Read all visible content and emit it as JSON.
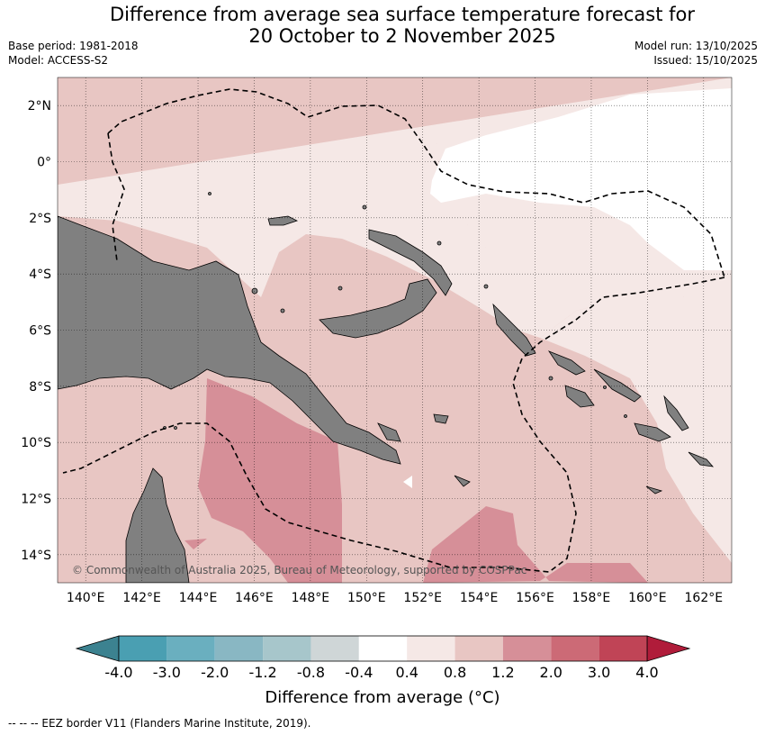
{
  "title": {
    "line1": "Difference from average sea surface temperature forecast for",
    "line2": "20 October to 2 November 2025"
  },
  "meta": {
    "base_period": "Base period: 1981-2018",
    "model": "Model: ACCESS-S2",
    "model_run": "Model run: 13/10/2025",
    "issued": "Issued: 15/10/2025"
  },
  "map": {
    "lon_range": [
      139,
      163
    ],
    "lat_range": [
      -15,
      3
    ],
    "lon_ticks": [
      {
        "value": 140,
        "label": "140°E"
      },
      {
        "value": 142,
        "label": "142°E"
      },
      {
        "value": 144,
        "label": "144°E"
      },
      {
        "value": 146,
        "label": "146°E"
      },
      {
        "value": 148,
        "label": "148°E"
      },
      {
        "value": 150,
        "label": "150°E"
      },
      {
        "value": 152,
        "label": "152°E"
      },
      {
        "value": 154,
        "label": "154°E"
      },
      {
        "value": 156,
        "label": "156°E"
      },
      {
        "value": 158,
        "label": "158°E"
      },
      {
        "value": 160,
        "label": "160°E"
      },
      {
        "value": 162,
        "label": "162°E"
      }
    ],
    "lat_ticks": [
      {
        "value": 2,
        "label": "2°N"
      },
      {
        "value": 0,
        "label": "0°"
      },
      {
        "value": -2,
        "label": "2°S"
      },
      {
        "value": -4,
        "label": "4°S"
      },
      {
        "value": -6,
        "label": "6°S"
      },
      {
        "value": -8,
        "label": "8°S"
      },
      {
        "value": -10,
        "label": "10°S"
      },
      {
        "value": -12,
        "label": "12°S"
      },
      {
        "value": -14,
        "label": "14°S"
      }
    ],
    "copyright": "© Commonwealth of Australia 2025, Bureau of Meteorology, supported by COSPPac",
    "land_color": "#808080",
    "grid": true
  },
  "colorbar": {
    "title": "Difference from average (°C)",
    "tick_labels": [
      "-4.0",
      "-3.0",
      "-2.0",
      "-1.2",
      "-0.8",
      "-0.4",
      "0.4",
      "0.8",
      "1.2",
      "2.0",
      "3.0",
      "4.0"
    ],
    "low_extend_color": "#3c8290",
    "high_extend_color": "#b01c3a",
    "bins": [
      {
        "from": -4.0,
        "to": -3.0,
        "color": "#4a9fb2"
      },
      {
        "from": -3.0,
        "to": -2.0,
        "color": "#6aafbf"
      },
      {
        "from": -2.0,
        "to": -1.2,
        "color": "#89b7c3"
      },
      {
        "from": -1.2,
        "to": -0.8,
        "color": "#a7c6cb"
      },
      {
        "from": -0.8,
        "to": -0.4,
        "color": "#cfd6d7"
      },
      {
        "from": -0.4,
        "to": 0.4,
        "color": "#ffffff"
      },
      {
        "from": 0.4,
        "to": 0.8,
        "color": "#f5e8e6"
      },
      {
        "from": 0.8,
        "to": 1.2,
        "color": "#e8c6c3"
      },
      {
        "from": 1.2,
        "to": 2.0,
        "color": "#d68f98"
      },
      {
        "from": 2.0,
        "to": 3.0,
        "color": "#cc6a76"
      },
      {
        "from": 3.0,
        "to": 4.0,
        "color": "#c04456"
      }
    ]
  },
  "footnote": "-- -- -- EEZ border V11 (Flanders Marine Institute, 2019)."
}
